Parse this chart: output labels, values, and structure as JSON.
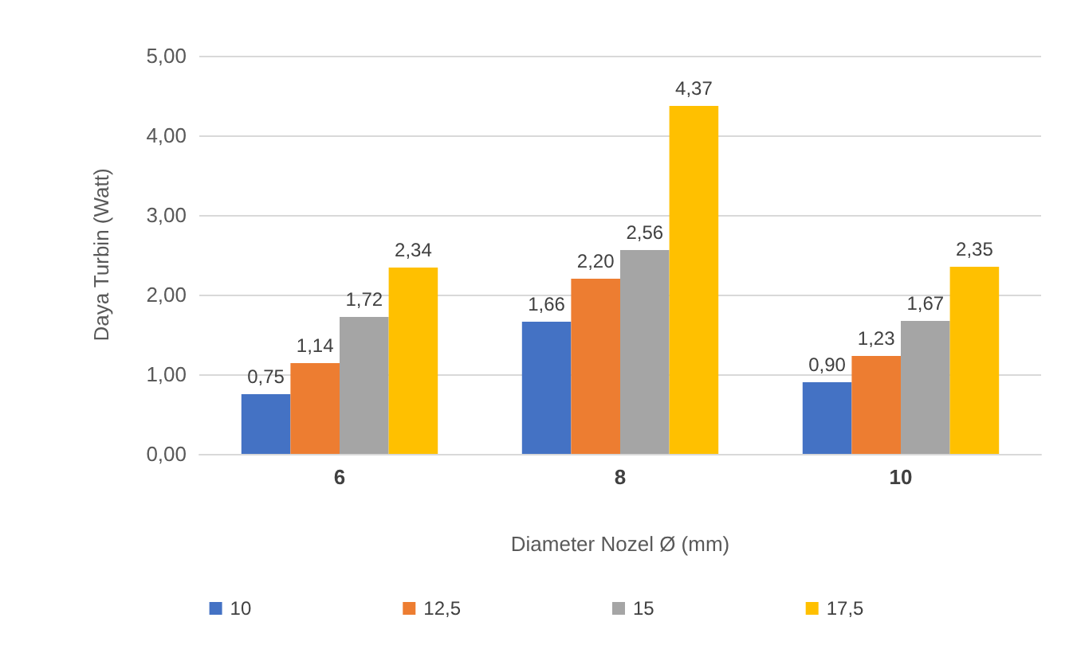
{
  "chart_data": {
    "type": "bar",
    "xlabel": "Diameter Nozel Ø (mm)",
    "ylabel": "Daya Turbin (Watt)",
    "categories": [
      "6",
      "8",
      "10"
    ],
    "series": [
      {
        "name": "10",
        "color": "#4472c4",
        "values": [
          0.75,
          1.66,
          0.9
        ],
        "value_labels": [
          "0,75",
          "1,66",
          "0,90"
        ]
      },
      {
        "name": "12,5",
        "color": "#ed7d31",
        "values": [
          1.14,
          2.2,
          1.23
        ],
        "value_labels": [
          "1,14",
          "2,20",
          "1,23"
        ]
      },
      {
        "name": "15",
        "color": "#a5a5a5",
        "values": [
          1.72,
          2.56,
          1.67
        ],
        "value_labels": [
          "1,72",
          "2,56",
          "1,67"
        ]
      },
      {
        "name": "17,5",
        "color": "#ffc000",
        "values": [
          2.34,
          4.37,
          2.35
        ],
        "value_labels": [
          "2,34",
          "4,37",
          "2,35"
        ]
      }
    ],
    "ylim": [
      0,
      5
    ],
    "yticks": [
      {
        "value": 0,
        "label": "0,00"
      },
      {
        "value": 1,
        "label": "1,00"
      },
      {
        "value": 2,
        "label": "2,00"
      },
      {
        "value": 3,
        "label": "3,00"
      },
      {
        "value": 4,
        "label": "4,00"
      },
      {
        "value": 5,
        "label": "5,00"
      }
    ],
    "grid": "y",
    "legend": "bottom"
  }
}
